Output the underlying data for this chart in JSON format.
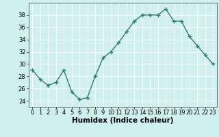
{
  "x": [
    0,
    1,
    2,
    3,
    4,
    5,
    6,
    7,
    8,
    9,
    10,
    11,
    12,
    13,
    14,
    15,
    16,
    17,
    18,
    19,
    20,
    21,
    22,
    23
  ],
  "y": [
    29,
    27.5,
    26.5,
    27,
    29,
    25.5,
    24.2,
    24.5,
    28,
    31,
    32,
    33.5,
    35.3,
    37,
    38,
    38,
    38,
    39,
    37,
    37,
    34.5,
    33,
    31.5,
    30
  ],
  "line_color": "#2e7d6e",
  "marker": "+",
  "marker_size": 4,
  "linewidth": 1.0,
  "markeredgewidth": 1.0,
  "xlabel": "Humidex (Indice chaleur)",
  "xlabel_fontsize": 7.5,
  "ylim": [
    23,
    40
  ],
  "yticks": [
    24,
    26,
    28,
    30,
    32,
    34,
    36,
    38
  ],
  "xticks": [
    0,
    1,
    2,
    3,
    4,
    5,
    6,
    7,
    8,
    9,
    10,
    11,
    12,
    13,
    14,
    15,
    16,
    17,
    18,
    19,
    20,
    21,
    22,
    23
  ],
  "background_color": "#cff0ee",
  "grid_color": "#ffffff",
  "tick_fontsize": 6,
  "spine_color": "#555555"
}
